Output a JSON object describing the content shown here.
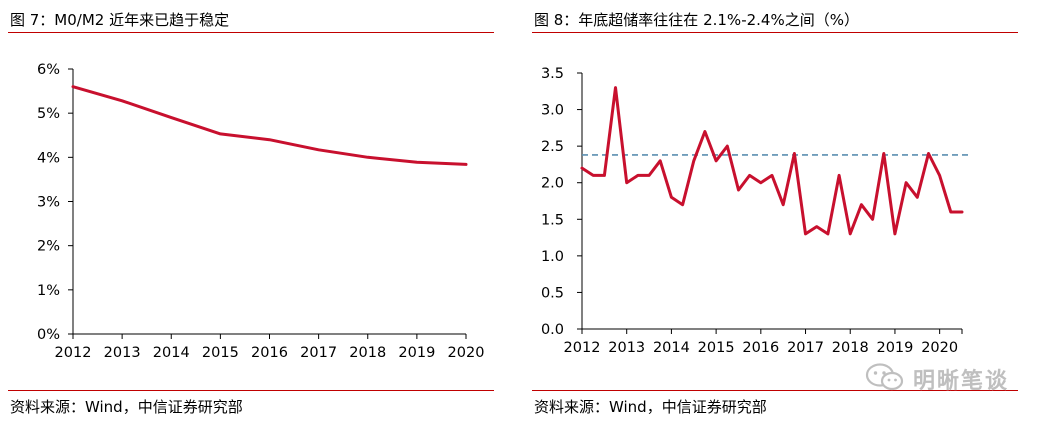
{
  "charts": [
    {
      "title": "图 7：M0/M2 近年来已趋于稳定",
      "source": "资料来源：Wind，中信证券研究部"
    },
    {
      "title": "图 8：年底超储率往往在 2.1%-2.4%之间（%）",
      "source": "资料来源：Wind，中信证券研究部"
    }
  ],
  "watermark": {
    "text": "明晰笔谈",
    "icon": "wechat-icon"
  },
  "colors": {
    "line": "#c8102e",
    "rule": "#c00000",
    "refline": "#5b8fb0",
    "axis": "#000000"
  },
  "chart_data": [
    {
      "type": "line",
      "title": "",
      "xlabel": "",
      "ylabel": "",
      "x_ticks": [
        "2012",
        "2013",
        "2014",
        "2015",
        "2016",
        "2017",
        "2018",
        "2019",
        "2020"
      ],
      "y_ticks": [
        "0%",
        "1%",
        "2%",
        "3%",
        "4%",
        "5%",
        "6%"
      ],
      "xlim": [
        2012,
        2020
      ],
      "ylim": [
        0,
        6
      ],
      "series": [
        {
          "x": [
            2012,
            2013,
            2014,
            2015,
            2016,
            2017,
            2018,
            2019,
            2020
          ],
          "y": [
            5.6,
            5.28,
            4.9,
            4.53,
            4.4,
            4.17,
            4.0,
            3.89,
            3.84
          ]
        }
      ],
      "grid": false,
      "legend": "none"
    },
    {
      "type": "line",
      "title": "",
      "xlabel": "",
      "ylabel": "",
      "x_ticks": [
        "2012",
        "2013",
        "2014",
        "2015",
        "2016",
        "2017",
        "2018",
        "2019",
        "2020"
      ],
      "y_ticks": [
        "0.0",
        "0.5",
        "1.0",
        "1.5",
        "2.0",
        "2.5",
        "3.0",
        "3.5"
      ],
      "xlim": [
        2012,
        2020.5
      ],
      "ylim": [
        0,
        3.5
      ],
      "series": [
        {
          "x": [
            2012.0,
            2012.25,
            2012.5,
            2012.75,
            2013.0,
            2013.25,
            2013.5,
            2013.75,
            2014.0,
            2014.25,
            2014.5,
            2014.75,
            2015.0,
            2015.25,
            2015.5,
            2015.75,
            2016.0,
            2016.25,
            2016.5,
            2016.75,
            2017.0,
            2017.25,
            2017.5,
            2017.75,
            2018.0,
            2018.25,
            2018.5,
            2018.75,
            2019.0,
            2019.25,
            2019.5,
            2019.75,
            2020.0,
            2020.25,
            2020.5
          ],
          "y": [
            2.2,
            2.1,
            2.1,
            3.3,
            2.0,
            2.1,
            2.1,
            2.3,
            1.8,
            1.7,
            2.3,
            2.7,
            2.3,
            2.5,
            1.9,
            2.1,
            2.0,
            2.1,
            1.7,
            2.4,
            1.3,
            1.4,
            1.3,
            2.1,
            1.3,
            1.7,
            1.5,
            2.4,
            1.3,
            2.0,
            1.8,
            2.4,
            2.1,
            1.6,
            1.6
          ]
        }
      ],
      "reference_line": 2.38,
      "grid": false,
      "legend": "none"
    }
  ]
}
